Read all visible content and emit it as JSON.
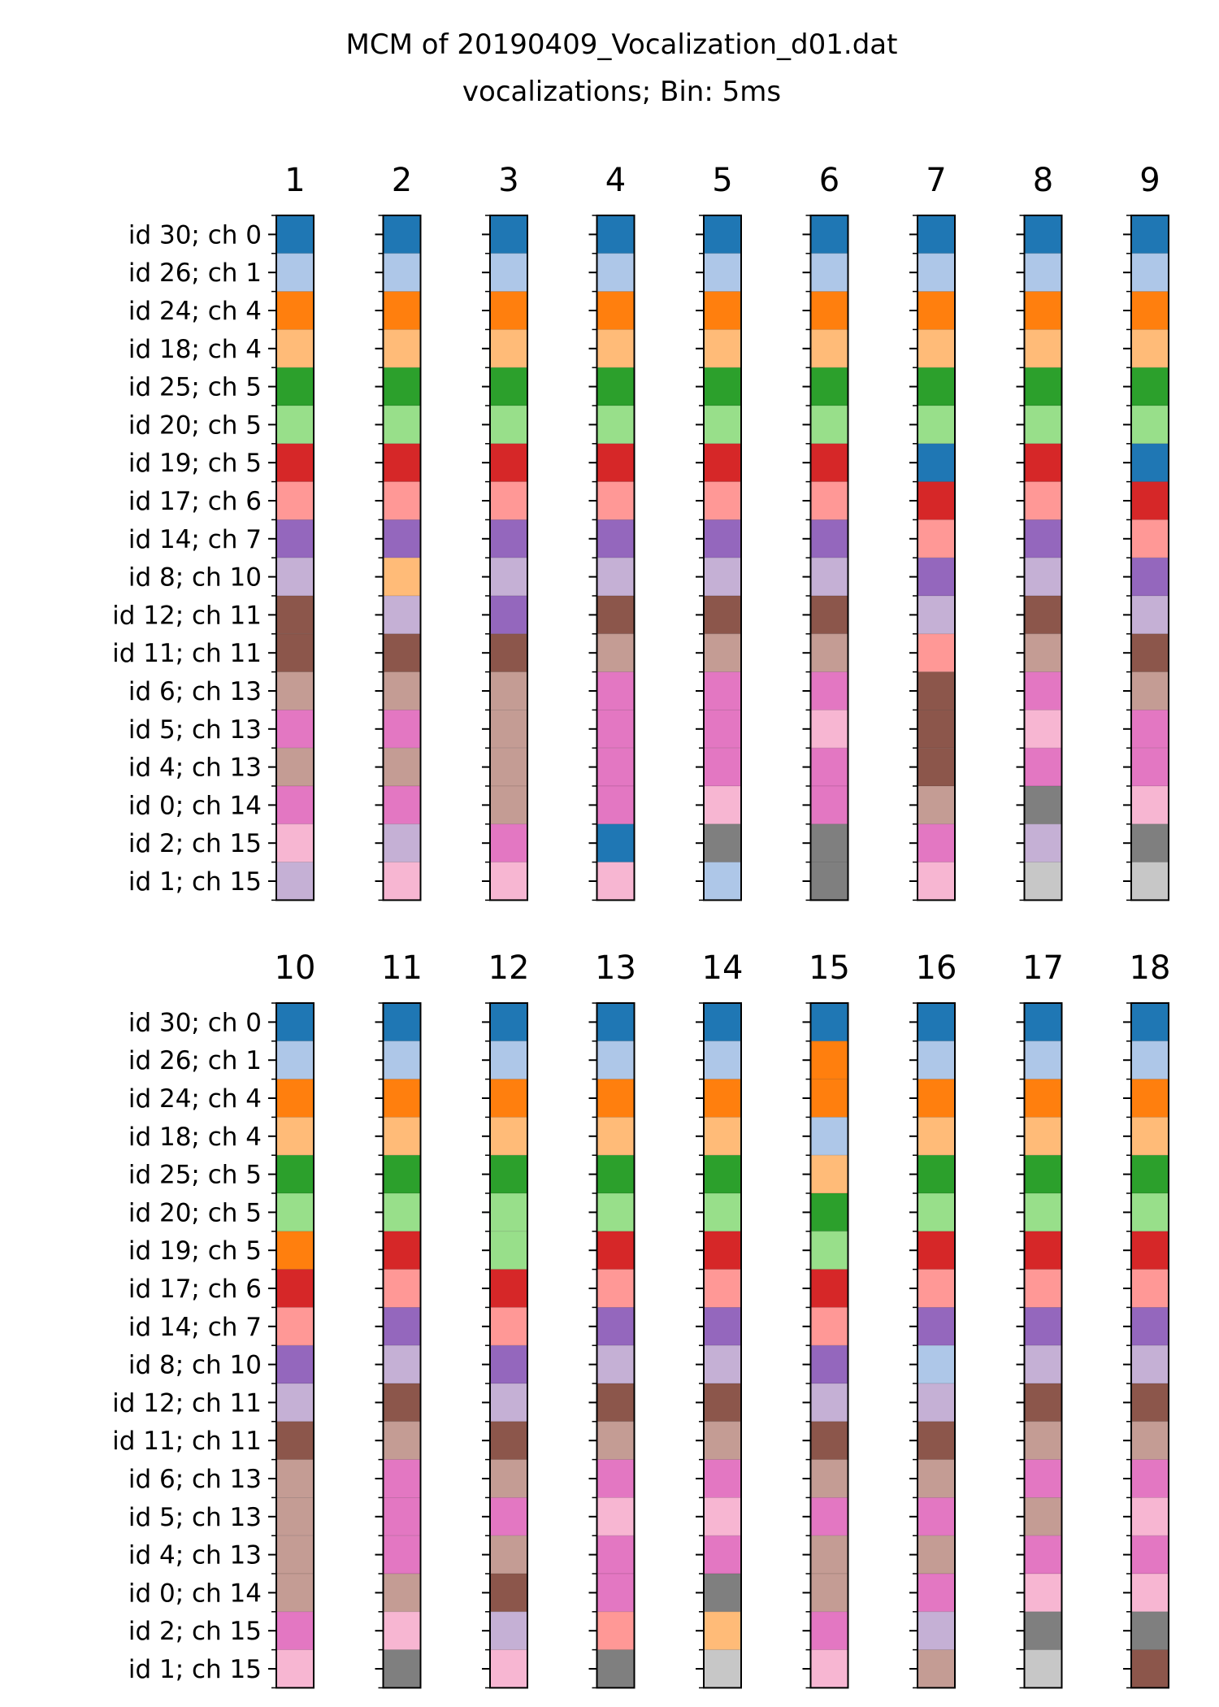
{
  "chart_data": {
    "type": "heatmap",
    "title": "MCM of 20190409_Vocalization_d01.dat",
    "subtitle": "vocalizations; Bin: 5ms",
    "row_labels": [
      "id 30; ch 0",
      "id 26; ch 1",
      "id 24; ch 4",
      "id 18; ch 4",
      "id 25; ch 5",
      "id 20; ch 5",
      "id 19; ch 5",
      "id 17; ch 6",
      "id 14; ch 7",
      "id 8; ch 10",
      "id 12; ch 11",
      "id 11; ch 11",
      "id 6; ch 13",
      "id 5; ch 13",
      "id 4; ch 13",
      "id 0; ch 14",
      "id 2; ch 15",
      "id 1; ch 15"
    ],
    "palette": [
      "#1f77b4",
      "#aec7e8",
      "#ff7f0e",
      "#ffbb78",
      "#2ca02c",
      "#98df8a",
      "#d62728",
      "#ff9896",
      "#9467bd",
      "#c5b0d5",
      "#8c564b",
      "#c49c94",
      "#e377c2",
      "#f7b6d2",
      "#7f7f7f",
      "#c7c7c7"
    ],
    "columns": [
      {
        "label": "1",
        "assignments": [
          0,
          1,
          2,
          3,
          4,
          5,
          6,
          7,
          8,
          9,
          10,
          10,
          11,
          12,
          11,
          12,
          13,
          9
        ]
      },
      {
        "label": "2",
        "assignments": [
          0,
          1,
          2,
          3,
          4,
          5,
          6,
          7,
          8,
          3,
          9,
          10,
          11,
          12,
          11,
          12,
          9,
          13
        ]
      },
      {
        "label": "3",
        "assignments": [
          0,
          1,
          2,
          3,
          4,
          5,
          6,
          7,
          8,
          9,
          8,
          10,
          11,
          11,
          11,
          11,
          12,
          13
        ]
      },
      {
        "label": "4",
        "assignments": [
          0,
          1,
          2,
          3,
          4,
          5,
          6,
          7,
          8,
          9,
          10,
          11,
          12,
          12,
          12,
          12,
          0,
          13
        ]
      },
      {
        "label": "5",
        "assignments": [
          0,
          1,
          2,
          3,
          4,
          5,
          6,
          7,
          8,
          9,
          10,
          11,
          12,
          12,
          12,
          13,
          14,
          1
        ]
      },
      {
        "label": "6",
        "assignments": [
          0,
          1,
          2,
          3,
          4,
          5,
          6,
          7,
          8,
          9,
          10,
          11,
          12,
          13,
          12,
          12,
          14,
          14
        ]
      },
      {
        "label": "7",
        "assignments": [
          0,
          1,
          2,
          3,
          4,
          5,
          0,
          6,
          7,
          8,
          9,
          7,
          10,
          10,
          10,
          11,
          12,
          13
        ]
      },
      {
        "label": "8",
        "assignments": [
          0,
          1,
          2,
          3,
          4,
          5,
          6,
          7,
          8,
          9,
          10,
          11,
          12,
          13,
          12,
          14,
          9,
          15
        ]
      },
      {
        "label": "9",
        "assignments": [
          0,
          1,
          2,
          3,
          4,
          5,
          0,
          6,
          7,
          8,
          9,
          10,
          11,
          12,
          12,
          13,
          14,
          15
        ]
      },
      {
        "label": "10",
        "assignments": [
          0,
          1,
          2,
          3,
          4,
          5,
          2,
          6,
          7,
          8,
          9,
          10,
          11,
          11,
          11,
          11,
          12,
          13
        ]
      },
      {
        "label": "11",
        "assignments": [
          0,
          1,
          2,
          3,
          4,
          5,
          6,
          7,
          8,
          9,
          10,
          11,
          12,
          12,
          12,
          11,
          13,
          14
        ]
      },
      {
        "label": "12",
        "assignments": [
          0,
          1,
          2,
          3,
          4,
          5,
          5,
          6,
          7,
          8,
          9,
          10,
          11,
          12,
          11,
          10,
          9,
          13
        ]
      },
      {
        "label": "13",
        "assignments": [
          0,
          1,
          2,
          3,
          4,
          5,
          6,
          7,
          8,
          9,
          10,
          11,
          12,
          13,
          12,
          12,
          7,
          14
        ]
      },
      {
        "label": "14",
        "assignments": [
          0,
          1,
          2,
          3,
          4,
          5,
          6,
          7,
          8,
          9,
          10,
          11,
          12,
          13,
          12,
          14,
          3,
          15
        ]
      },
      {
        "label": "15",
        "assignments": [
          0,
          2,
          2,
          1,
          3,
          4,
          5,
          6,
          7,
          8,
          9,
          10,
          11,
          12,
          11,
          11,
          12,
          13
        ]
      },
      {
        "label": "16",
        "assignments": [
          0,
          1,
          2,
          3,
          4,
          5,
          6,
          7,
          8,
          1,
          9,
          10,
          11,
          12,
          11,
          12,
          9,
          11
        ]
      },
      {
        "label": "17",
        "assignments": [
          0,
          1,
          2,
          3,
          4,
          5,
          6,
          7,
          8,
          9,
          10,
          11,
          12,
          11,
          12,
          13,
          14,
          15
        ]
      },
      {
        "label": "18",
        "assignments": [
          0,
          1,
          2,
          3,
          4,
          5,
          6,
          7,
          8,
          9,
          10,
          11,
          12,
          13,
          12,
          13,
          14,
          10
        ]
      }
    ]
  }
}
